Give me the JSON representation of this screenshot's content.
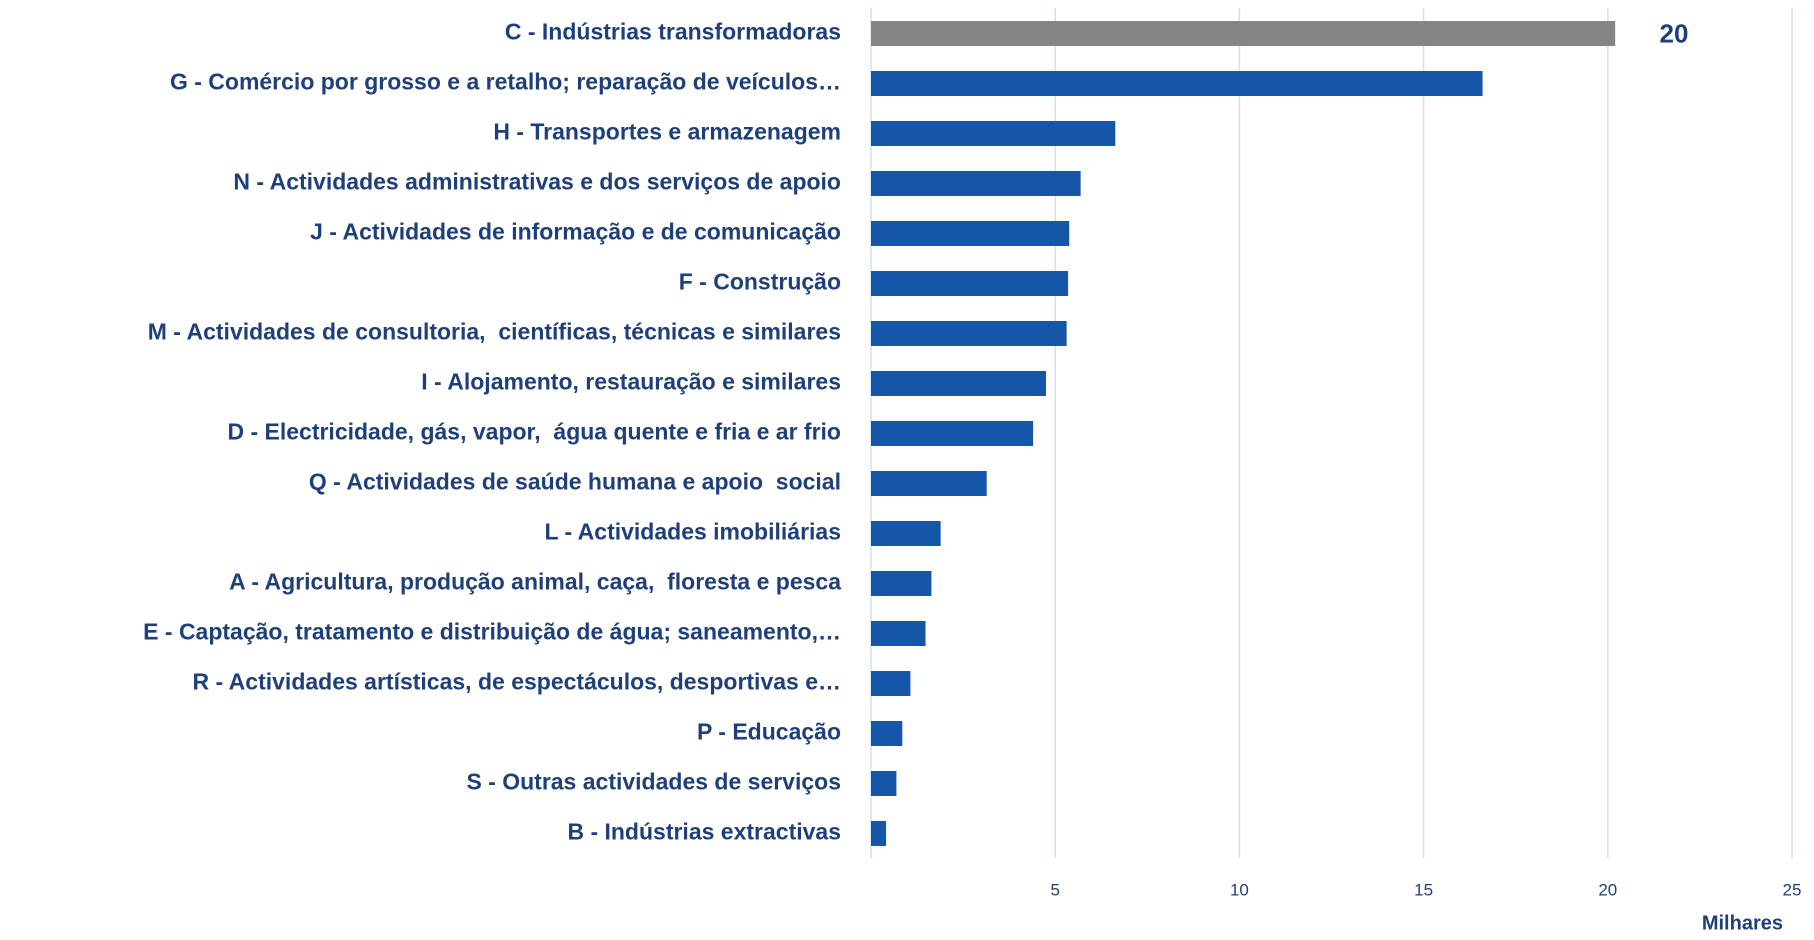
{
  "chart_data": {
    "type": "barh",
    "categories": [
      "C - Indústrias transformadoras",
      "G - Comércio por grosso e a retalho; reparação de veículos…",
      "H - Transportes e armazenagem",
      "N - Actividades administrativas e dos serviços de apoio",
      "J - Actividades de informação e de comunicação",
      "F - Construção",
      "M - Actividades de consultoria,  científicas, técnicas e similares",
      "I - Alojamento, restauração e similares",
      "D - Electricidade, gás, vapor,  água quente e fria e ar frio",
      "Q - Actividades de saúde humana e apoio  social",
      "L - Actividades imobiliárias",
      "A - Agricultura, produção animal, caça,  floresta e pesca",
      "E - Captação, tratamento e distribuição de água; saneamento,…",
      "R - Actividades artísticas, de espectáculos, desportivas e…",
      "P - Educação",
      "S - Outras actividades de serviços",
      "B - Indústrias extractivas"
    ],
    "values": [
      20.2,
      16.6,
      6.63,
      5.69,
      5.38,
      5.35,
      5.31,
      4.75,
      4.4,
      3.14,
      1.89,
      1.64,
      1.48,
      1.07,
      0.85,
      0.69,
      0.41
    ],
    "value_labels": [
      "20",
      null,
      null,
      null,
      null,
      null,
      null,
      null,
      null,
      null,
      null,
      null,
      null,
      null,
      null,
      null,
      null
    ],
    "colors": [
      "#858585",
      "#1656a8",
      "#1656a8",
      "#1656a8",
      "#1656a8",
      "#1656a8",
      "#1656a8",
      "#1656a8",
      "#1656a8",
      "#1656a8",
      "#1656a8",
      "#1656a8",
      "#1656a8",
      "#1656a8",
      "#1656a8",
      "#1656a8",
      "#1656a8"
    ],
    "xlim": [
      0,
      25
    ],
    "xticks": [
      5,
      10,
      15,
      20,
      25
    ],
    "grid": true,
    "xlabel": "Milhares"
  }
}
